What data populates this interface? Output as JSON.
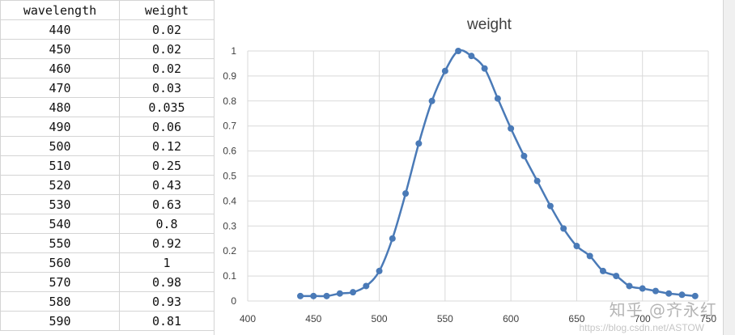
{
  "sheet": {
    "headers": [
      "wavelength",
      "weight"
    ],
    "rows": [
      [
        "440",
        "0.02"
      ],
      [
        "450",
        "0.02"
      ],
      [
        "460",
        "0.02"
      ],
      [
        "470",
        "0.03"
      ],
      [
        "480",
        "0.035"
      ],
      [
        "490",
        "0.06"
      ],
      [
        "500",
        "0.12"
      ],
      [
        "510",
        "0.25"
      ],
      [
        "520",
        "0.43"
      ],
      [
        "530",
        "0.63"
      ],
      [
        "540",
        "0.8"
      ],
      [
        "550",
        "0.92"
      ],
      [
        "560",
        "1"
      ],
      [
        "570",
        "0.98"
      ],
      [
        "580",
        "0.93"
      ],
      [
        "590",
        "0.81"
      ]
    ]
  },
  "chart_data": {
    "type": "line",
    "title": "weight",
    "xlabel": "",
    "ylabel": "",
    "xlim": [
      400,
      750
    ],
    "ylim": [
      0,
      1
    ],
    "xticks": [
      400,
      450,
      500,
      550,
      600,
      650,
      700,
      750
    ],
    "yticks": [
      0,
      0.1,
      0.2,
      0.3,
      0.4,
      0.5,
      0.6,
      0.7,
      0.8,
      0.9,
      1
    ],
    "grid": true,
    "legend": "none",
    "series": [
      {
        "color": "#4a7ab7",
        "x": [
          440,
          450,
          460,
          470,
          480,
          490,
          500,
          510,
          520,
          530,
          540,
          550,
          560,
          570,
          580,
          590,
          600,
          610,
          620,
          630,
          640,
          650,
          660,
          670,
          680,
          690,
          700,
          710,
          720,
          730,
          740
        ],
        "y": [
          0.02,
          0.02,
          0.02,
          0.03,
          0.035,
          0.06,
          0.12,
          0.25,
          0.43,
          0.63,
          0.8,
          0.92,
          1,
          0.98,
          0.93,
          0.81,
          0.69,
          0.58,
          0.48,
          0.38,
          0.29,
          0.22,
          0.18,
          0.12,
          0.1,
          0.06,
          0.05,
          0.04,
          0.03,
          0.025,
          0.02
        ]
      }
    ]
  },
  "watermark": {
    "text": "知乎 @齐永红",
    "url": "https://blog.csdn.net/ASTOW"
  }
}
